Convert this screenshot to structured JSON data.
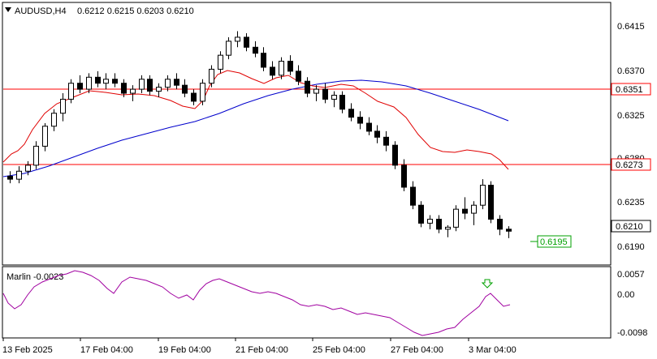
{
  "header": {
    "symbol": "AUDUSD,H4",
    "ohlc": "0.6212 0.6215 0.6203 0.6210",
    "menu_icon": "triangle-down-icon"
  },
  "indicator": {
    "label": "Marlin -0.0023",
    "ticks": [
      "0.0057",
      "0.00",
      "-0.0098"
    ],
    "arrow_icon": "down-arrow-icon"
  },
  "price_axis": {
    "ticks": [
      "0.6415",
      "0.6370",
      "0.6325",
      "0.6280",
      "0.6235",
      "0.6190"
    ],
    "levels": [
      {
        "value": "0.6351",
        "color": "#ff0000"
      },
      {
        "value": "0.6273",
        "color": "#ff0000"
      }
    ],
    "current": "0.6210",
    "target": "0.6195",
    "target_color": "#00a000"
  },
  "time_axis": {
    "labels": [
      "13 Feb 2025",
      "17 Feb 04:00",
      "19 Feb 04:00",
      "21 Feb 04:00",
      "25 Feb 04:00",
      "27 Feb 04:00",
      "3 Mar 04:00"
    ]
  },
  "colors": {
    "slow_ma": "#0000cc",
    "fast_ma": "#e00000",
    "oscillator": "#a000a0",
    "arrow": "#00a000"
  },
  "chart_data": {
    "type": "candlestick",
    "candles": [
      [
        0.6265,
        0.627,
        0.6258,
        0.6262
      ],
      [
        0.6262,
        0.6275,
        0.6258,
        0.627
      ],
      [
        0.627,
        0.628,
        0.6266,
        0.6276
      ],
      [
        0.6276,
        0.63,
        0.6272,
        0.6295
      ],
      [
        0.6295,
        0.6318,
        0.629,
        0.6315
      ],
      [
        0.6315,
        0.6332,
        0.631,
        0.6328
      ],
      [
        0.6328,
        0.6348,
        0.632,
        0.6342
      ],
      [
        0.6342,
        0.6362,
        0.6338,
        0.6358
      ],
      [
        0.6358,
        0.6366,
        0.6348,
        0.6352
      ],
      [
        0.6352,
        0.6368,
        0.6348,
        0.6364
      ],
      [
        0.6364,
        0.637,
        0.6354,
        0.6358
      ],
      [
        0.6358,
        0.6368,
        0.6352,
        0.6362
      ],
      [
        0.6362,
        0.6368,
        0.6354,
        0.6358
      ],
      [
        0.6358,
        0.6362,
        0.6344,
        0.6348
      ],
      [
        0.6348,
        0.6356,
        0.634,
        0.6352
      ],
      [
        0.6352,
        0.6366,
        0.6348,
        0.6362
      ],
      [
        0.6362,
        0.6366,
        0.6346,
        0.635
      ],
      [
        0.635,
        0.6358,
        0.6344,
        0.6354
      ],
      [
        0.6354,
        0.6366,
        0.635,
        0.6362
      ],
      [
        0.6362,
        0.6368,
        0.6352,
        0.6356
      ],
      [
        0.6356,
        0.6362,
        0.6344,
        0.6348
      ],
      [
        0.6348,
        0.6352,
        0.6336,
        0.634
      ],
      [
        0.634,
        0.6362,
        0.6336,
        0.6358
      ],
      [
        0.6358,
        0.6376,
        0.6354,
        0.6372
      ],
      [
        0.6372,
        0.639,
        0.6368,
        0.6386
      ],
      [
        0.6386,
        0.6404,
        0.6382,
        0.64
      ],
      [
        0.64,
        0.641,
        0.6394,
        0.6404
      ],
      [
        0.6404,
        0.6408,
        0.639,
        0.6394
      ],
      [
        0.6394,
        0.64,
        0.6384,
        0.6388
      ],
      [
        0.6388,
        0.6394,
        0.637,
        0.6374
      ],
      [
        0.6374,
        0.638,
        0.6362,
        0.6366
      ],
      [
        0.6366,
        0.6384,
        0.6362,
        0.638
      ],
      [
        0.638,
        0.6386,
        0.6366,
        0.637
      ],
      [
        0.637,
        0.6376,
        0.6356,
        0.636
      ],
      [
        0.636,
        0.6364,
        0.6344,
        0.6348
      ],
      [
        0.6348,
        0.6356,
        0.634,
        0.6352
      ],
      [
        0.6352,
        0.6358,
        0.6338,
        0.6342
      ],
      [
        0.6342,
        0.635,
        0.6334,
        0.6346
      ],
      [
        0.6346,
        0.635,
        0.6328,
        0.6332
      ],
      [
        0.6332,
        0.6338,
        0.632,
        0.6324
      ],
      [
        0.6324,
        0.633,
        0.6312,
        0.6318
      ],
      [
        0.6318,
        0.6324,
        0.6306,
        0.631
      ],
      [
        0.631,
        0.6316,
        0.6298,
        0.6304
      ],
      [
        0.6304,
        0.631,
        0.629,
        0.6296
      ],
      [
        0.6296,
        0.63,
        0.6272,
        0.6276
      ],
      [
        0.6276,
        0.6282,
        0.625,
        0.6254
      ],
      [
        0.6254,
        0.626,
        0.6232,
        0.6236
      ],
      [
        0.6236,
        0.624,
        0.6214,
        0.6218
      ],
      [
        0.6218,
        0.6226,
        0.6212,
        0.6222
      ],
      [
        0.6222,
        0.6226,
        0.6208,
        0.6212
      ],
      [
        0.6212,
        0.6216,
        0.6204,
        0.6214
      ],
      [
        0.6214,
        0.6236,
        0.621,
        0.6232
      ],
      [
        0.6232,
        0.6244,
        0.6222,
        0.6228
      ],
      [
        0.6228,
        0.624,
        0.6216,
        0.6236
      ],
      [
        0.6236,
        0.6262,
        0.6232,
        0.6256
      ],
      [
        0.6256,
        0.626,
        0.6218,
        0.6222
      ],
      [
        0.6222,
        0.6226,
        0.6206,
        0.6212
      ],
      [
        0.6212,
        0.6215,
        0.6203,
        0.621
      ]
    ],
    "price_range": [
      0.6177,
      0.6438
    ],
    "indicator_range": [
      -0.011,
      0.0066
    ]
  }
}
